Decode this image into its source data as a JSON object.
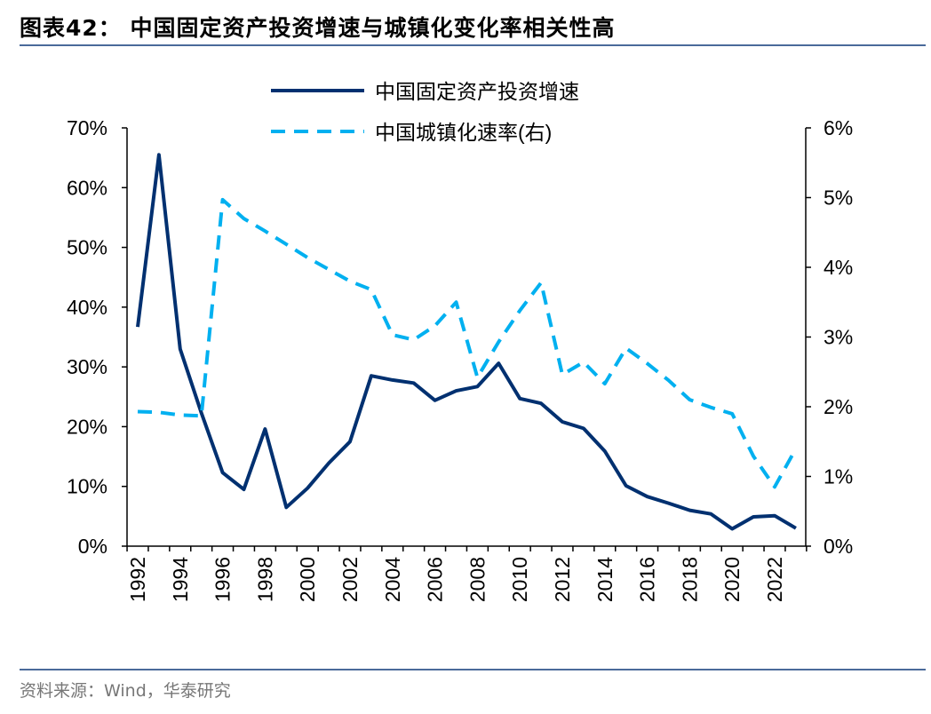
{
  "title": "图表42：  中国固定资产投资增速与城镇化变化率相关性高",
  "source": "资料来源：Wind，华泰研究",
  "chart_data": {
    "type": "line",
    "title": "",
    "x": [
      1992,
      1993,
      1994,
      1995,
      1996,
      1997,
      1998,
      1999,
      2000,
      2001,
      2002,
      2003,
      2004,
      2005,
      2006,
      2007,
      2008,
      2009,
      2010,
      2011,
      2012,
      2013,
      2014,
      2015,
      2016,
      2017,
      2018,
      2019,
      2020,
      2021,
      2022,
      2023
    ],
    "x_tick_labels": [
      "1992",
      "1994",
      "1996",
      "1998",
      "2000",
      "2002",
      "2004",
      "2006",
      "2008",
      "2010",
      "2012",
      "2014",
      "2016",
      "2018",
      "2020",
      "2022"
    ],
    "y_left": {
      "range": [
        0,
        70
      ],
      "ticks": [
        "0%",
        "10%",
        "20%",
        "30%",
        "40%",
        "50%",
        "60%",
        "70%"
      ]
    },
    "y_right": {
      "range": [
        0,
        6
      ],
      "ticks": [
        "0%",
        "1%",
        "2%",
        "3%",
        "4%",
        "5%",
        "6%"
      ]
    },
    "legend_position": "top-center",
    "grid": false,
    "series": [
      {
        "name": "中国固定资产投资增速",
        "axis": "left",
        "style": "solid",
        "color": "#003070",
        "values": [
          36.7,
          65.5,
          33.0,
          22.3,
          12.3,
          9.5,
          19.6,
          6.5,
          9.7,
          13.9,
          17.5,
          28.5,
          27.8,
          27.3,
          24.4,
          26.0,
          26.7,
          30.6,
          24.7,
          23.9,
          20.8,
          19.7,
          15.9,
          10.1,
          8.3,
          7.2,
          6.0,
          5.4,
          2.9,
          4.9,
          5.1,
          3.0
        ]
      },
      {
        "name": "中国城镇化速率(右)",
        "axis": "right",
        "style": "dashed",
        "color": "#00b0f0",
        "values": [
          1.93,
          1.92,
          1.88,
          1.87,
          4.97,
          4.7,
          4.52,
          4.33,
          4.14,
          3.97,
          3.8,
          3.68,
          3.03,
          2.96,
          3.16,
          3.5,
          2.42,
          2.93,
          3.38,
          3.78,
          2.46,
          2.64,
          2.33,
          2.84,
          2.62,
          2.38,
          2.1,
          1.99,
          1.9,
          1.29,
          0.85,
          1.4
        ]
      }
    ]
  }
}
